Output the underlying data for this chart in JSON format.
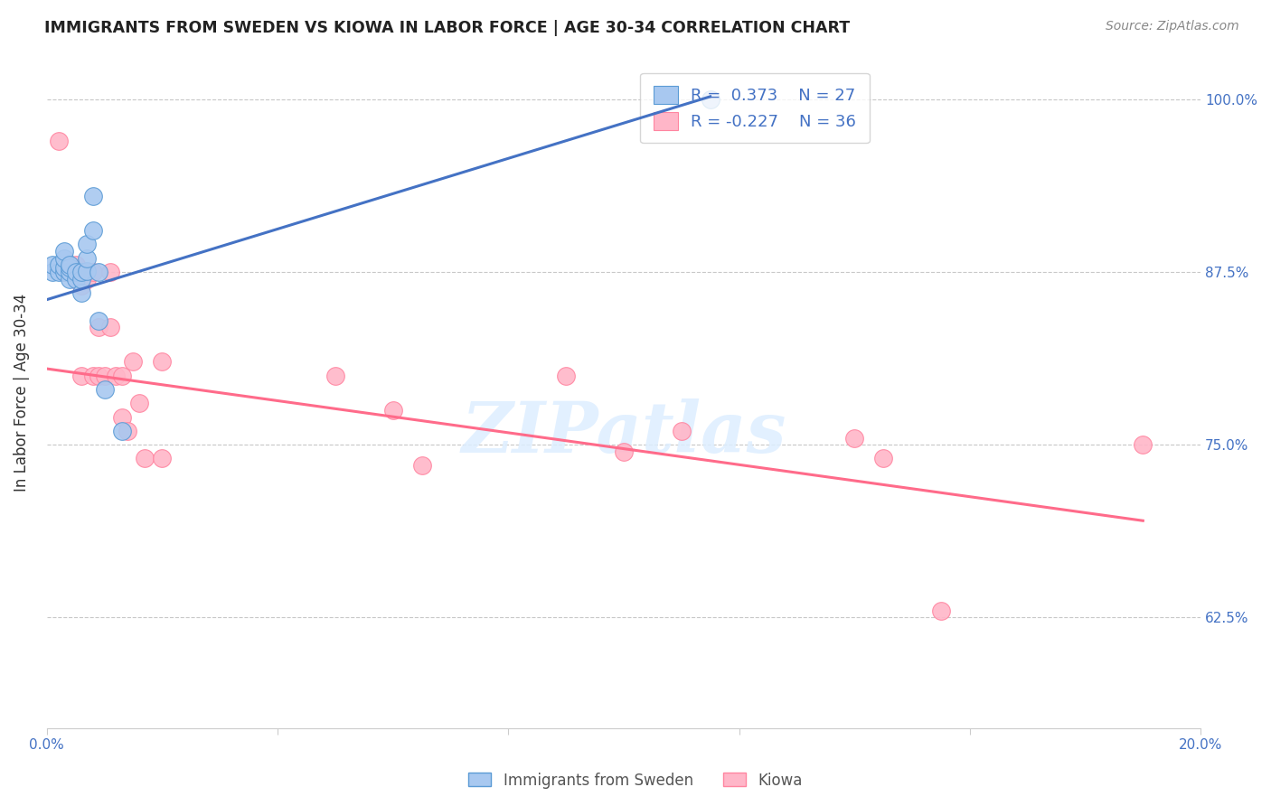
{
  "title": "IMMIGRANTS FROM SWEDEN VS KIOWA IN LABOR FORCE | AGE 30-34 CORRELATION CHART",
  "source": "Source: ZipAtlas.com",
  "ylabel": "In Labor Force | Age 30-34",
  "xlim": [
    0.0,
    0.2
  ],
  "ylim": [
    0.545,
    1.03
  ],
  "ytick_labels_right": [
    "100.0%",
    "87.5%",
    "75.0%",
    "62.5%"
  ],
  "ytick_vals_right": [
    1.0,
    0.875,
    0.75,
    0.625
  ],
  "legend_r_sweden": "R =  0.373",
  "legend_n_sweden": "N = 27",
  "legend_r_kiowa": "R = -0.227",
  "legend_n_kiowa": "N = 36",
  "blue_color": "#A8C8F0",
  "blue_edge_color": "#5B9BD5",
  "blue_line_color": "#4472C4",
  "pink_color": "#FFB6C8",
  "pink_edge_color": "#FF85A0",
  "pink_line_color": "#FF6B8A",
  "watermark": "ZIPatlas",
  "sweden_x": [
    0.001,
    0.001,
    0.002,
    0.002,
    0.003,
    0.003,
    0.003,
    0.003,
    0.004,
    0.004,
    0.004,
    0.004,
    0.005,
    0.005,
    0.006,
    0.006,
    0.006,
    0.007,
    0.007,
    0.007,
    0.008,
    0.008,
    0.009,
    0.009,
    0.01,
    0.013,
    0.115
  ],
  "sweden_y": [
    0.875,
    0.88,
    0.875,
    0.88,
    0.875,
    0.878,
    0.885,
    0.89,
    0.87,
    0.875,
    0.878,
    0.88,
    0.87,
    0.875,
    0.86,
    0.87,
    0.875,
    0.876,
    0.885,
    0.895,
    0.905,
    0.93,
    0.875,
    0.84,
    0.79,
    0.76,
    1.0
  ],
  "kiowa_x": [
    0.002,
    0.003,
    0.004,
    0.005,
    0.005,
    0.006,
    0.006,
    0.006,
    0.007,
    0.007,
    0.008,
    0.008,
    0.009,
    0.009,
    0.01,
    0.011,
    0.011,
    0.012,
    0.013,
    0.013,
    0.014,
    0.015,
    0.016,
    0.017,
    0.02,
    0.02,
    0.05,
    0.06,
    0.065,
    0.09,
    0.1,
    0.11,
    0.14,
    0.145,
    0.155,
    0.19
  ],
  "kiowa_y": [
    0.97,
    0.875,
    0.875,
    0.87,
    0.88,
    0.865,
    0.87,
    0.8,
    0.875,
    0.87,
    0.875,
    0.8,
    0.835,
    0.8,
    0.8,
    0.875,
    0.835,
    0.8,
    0.77,
    0.8,
    0.76,
    0.81,
    0.78,
    0.74,
    0.81,
    0.74,
    0.8,
    0.775,
    0.735,
    0.8,
    0.745,
    0.76,
    0.755,
    0.74,
    0.63,
    0.75
  ],
  "blue_line_x0": 0.0,
  "blue_line_y0": 0.855,
  "blue_line_x1": 0.115,
  "blue_line_y1": 1.002,
  "pink_line_x0": 0.0,
  "pink_line_y0": 0.805,
  "pink_line_x1": 0.19,
  "pink_line_y1": 0.695
}
